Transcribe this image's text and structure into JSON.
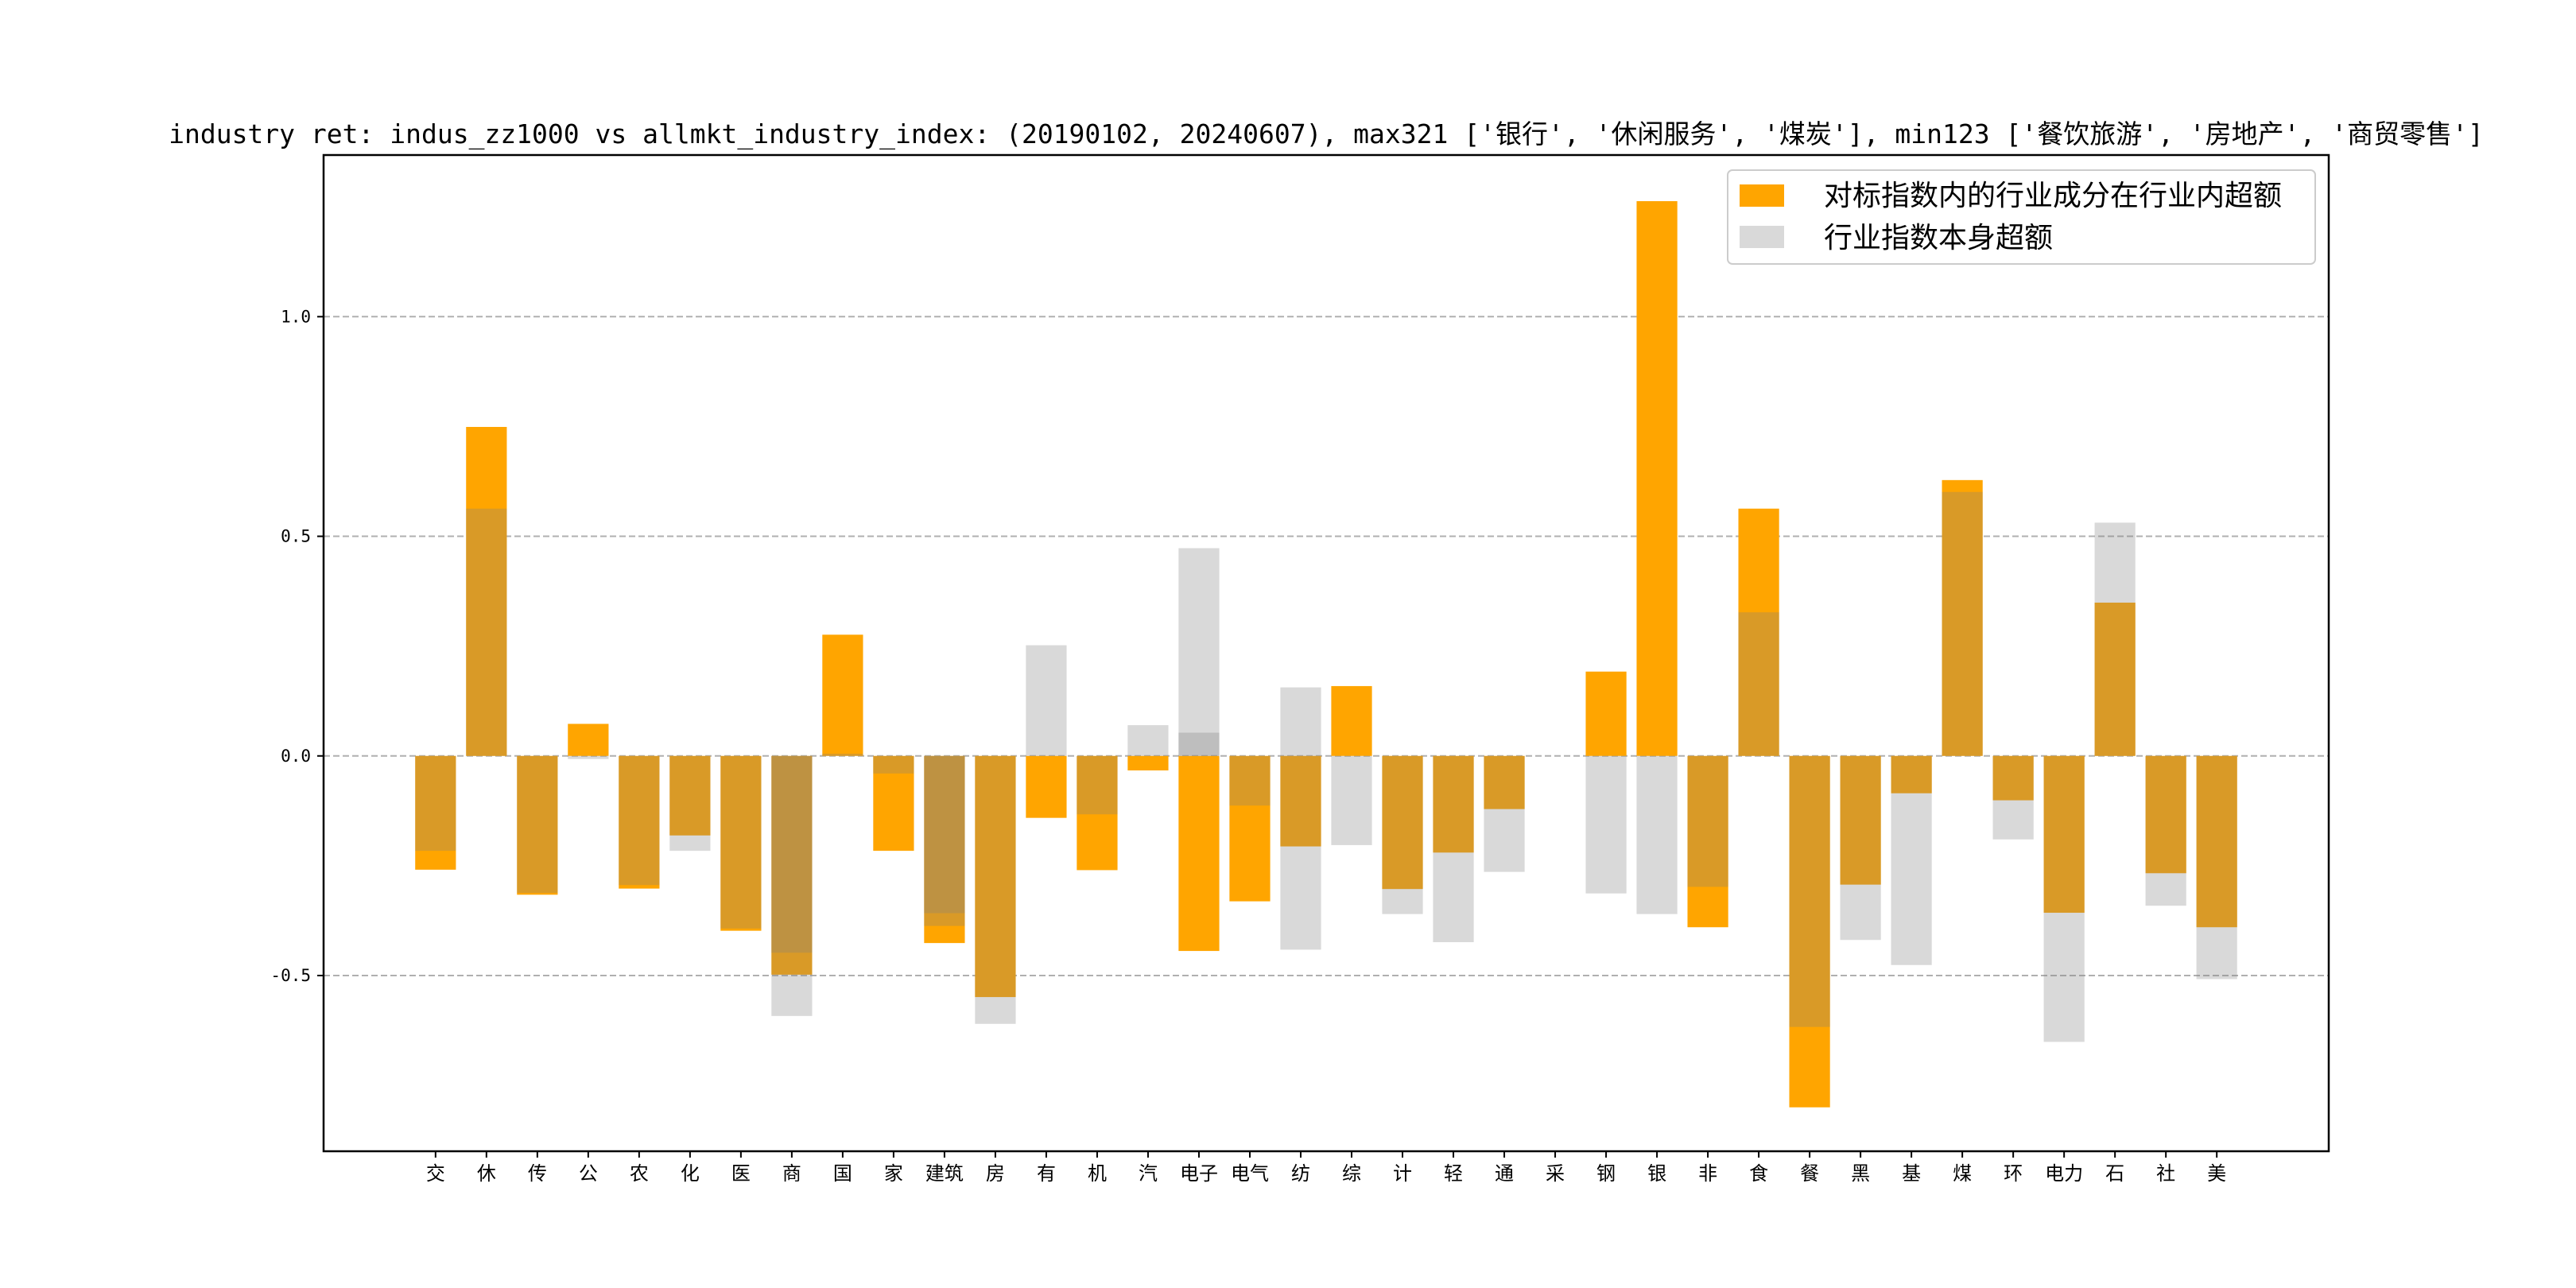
{
  "chart_data": {
    "type": "bar",
    "title": "industry ret: indus_zz1000 vs allmkt_industry_index: (20190102, 20240607), max321 ['银行', '休闲服务', '煤炭'], min123 ['餐饮旅游', '房地产', '商贸零售']",
    "xlabel": "",
    "ylabel": "",
    "ylim": [
      -0.9,
      1.368
    ],
    "yticks": [
      1.0,
      0.5,
      0.0,
      -0.5
    ],
    "ytick_labels": [
      "1.0",
      "0.5",
      "0.0",
      "-0.5"
    ],
    "grid": "horizontal dashed",
    "legend_position": "top-right",
    "categories": [
      "交",
      "休",
      "传",
      "公",
      "农",
      "化",
      "医",
      "商",
      "国",
      "家",
      "建筑",
      "房",
      "有",
      "机",
      "汽",
      "电子",
      "电气",
      "纺",
      "综",
      "计",
      "轻",
      "通",
      "采",
      "钢",
      "银",
      "非",
      "食",
      "餐",
      "黑",
      "基",
      "煤",
      "环",
      "电力",
      "石",
      "社",
      "美"
    ],
    "series": [
      {
        "name": "对标指数内的行业成分在行业内超额",
        "color": "#ffa500",
        "values": [
          -0.259,
          0.749,
          -0.316,
          0.073,
          -0.302,
          -0.181,
          -0.398,
          -0.498,
          0.276,
          -0.216,
          -0.426,
          -0.549,
          -0.141,
          -0.26,
          -0.033,
          -0.444,
          -0.331,
          -0.206,
          0.159,
          -0.303,
          -0.22,
          -0.121,
          0,
          0.192,
          1.263,
          -0.39,
          0.563,
          -0.8,
          -0.293,
          -0.085,
          0.628,
          -0.101,
          -0.357,
          0.349,
          -0.267,
          -0.39
        ]
      },
      {
        "name": "行业指数本身超额",
        "color": "#808080",
        "values": [
          -0.216,
          0.563,
          -0.312,
          -0.007,
          -0.294,
          -0.216,
          -0.393,
          -0.592,
          0.005,
          -0.04,
          -0.387,
          -0.61,
          0.252,
          -0.133,
          0.07,
          0.473,
          -0.113,
          -0.441,
          -0.203,
          -0.36,
          -0.424,
          -0.264,
          0,
          -0.313,
          -0.36,
          -0.298,
          0.327,
          -0.617,
          -0.419,
          -0.476,
          0.601,
          -0.19,
          -0.651,
          0.531,
          -0.341,
          -0.508
        ],
        "extra_values": [
          null,
          null,
          null,
          null,
          null,
          null,
          null,
          -0.448,
          null,
          null,
          -0.358,
          null,
          null,
          null,
          null,
          0.053,
          null,
          0.156,
          null,
          null,
          null,
          null,
          null,
          null,
          null,
          null,
          null,
          null,
          null,
          null,
          null,
          null,
          null,
          null,
          null,
          null
        ]
      }
    ]
  }
}
